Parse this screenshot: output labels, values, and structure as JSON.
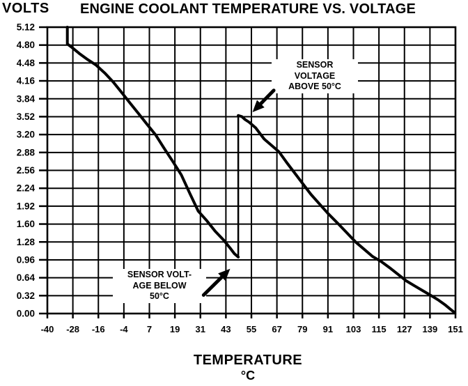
{
  "page_title": "ENGINE COOLANT TEMPERATURE VS. VOLTAGE",
  "chart_data": {
    "type": "line",
    "title": "ENGINE COOLANT TEMPERATURE VS. VOLTAGE",
    "ylabel": "VOLTS",
    "xlabel": "TEMPERATURE",
    "x_unit": "°C",
    "xlim": [
      -40,
      152
    ],
    "ylim": [
      0,
      5.12
    ],
    "grid": true,
    "legend": "none",
    "x_ticks": [
      "-40",
      "-28",
      "-16",
      "-4",
      "7",
      "19",
      "31",
      "43",
      "55",
      "67",
      "79",
      "91",
      "103",
      "115",
      "127",
      "139",
      "151"
    ],
    "y_ticks": [
      "5.12",
      "4.80",
      "4.48",
      "4.16",
      "3.84",
      "3.52",
      "3.20",
      "2.88",
      "2.56",
      "2.24",
      "1.92",
      "1.60",
      "1.28",
      "0.96",
      "0.64",
      "0.32",
      "0.00"
    ],
    "series": [
      {
        "name": "sensor-voltage-below-50C",
        "points": [
          [
            -30.6,
            5.12
          ],
          [
            -30.6,
            4.82
          ],
          [
            -28.5,
            4.76
          ],
          [
            -25,
            4.65
          ],
          [
            -21,
            4.54
          ],
          [
            -17,
            4.44
          ],
          [
            -13,
            4.3
          ],
          [
            -9,
            4.14
          ],
          [
            -5,
            3.95
          ],
          [
            -1,
            3.76
          ],
          [
            3,
            3.57
          ],
          [
            7,
            3.38
          ],
          [
            11,
            3.19
          ],
          [
            15,
            2.95
          ],
          [
            19,
            2.72
          ],
          [
            23,
            2.48
          ],
          [
            27,
            2.15
          ],
          [
            31,
            1.83
          ],
          [
            35,
            1.66
          ],
          [
            39,
            1.47
          ],
          [
            43,
            1.31
          ],
          [
            46,
            1.17
          ],
          [
            48,
            1.07
          ],
          [
            49.8,
            1.01
          ]
        ]
      },
      {
        "name": "range-switch-jump-at-50C",
        "points": [
          [
            49.8,
            1.01
          ],
          [
            49.8,
            3.54
          ]
        ]
      },
      {
        "name": "sensor-voltage-above-50C",
        "points": [
          [
            49.8,
            3.54
          ],
          [
            51.5,
            3.52
          ],
          [
            53,
            3.47
          ],
          [
            55,
            3.42
          ],
          [
            58,
            3.32
          ],
          [
            62,
            3.12
          ],
          [
            66,
            2.99
          ],
          [
            69,
            2.89
          ],
          [
            73,
            2.68
          ],
          [
            77,
            2.48
          ],
          [
            81,
            2.28
          ],
          [
            84,
            2.13
          ],
          [
            88,
            1.96
          ],
          [
            92,
            1.79
          ],
          [
            97,
            1.6
          ],
          [
            101,
            1.44
          ],
          [
            105,
            1.28
          ],
          [
            109,
            1.15
          ],
          [
            113,
            1.02
          ],
          [
            117,
            0.93
          ],
          [
            121,
            0.82
          ],
          [
            125,
            0.7
          ],
          [
            129,
            0.58
          ],
          [
            133,
            0.49
          ],
          [
            137,
            0.4
          ],
          [
            140.6,
            0.32
          ],
          [
            144,
            0.24
          ],
          [
            147,
            0.16
          ],
          [
            149.5,
            0.08
          ],
          [
            151.5,
            0.02
          ]
        ]
      }
    ],
    "annotations": [
      {
        "id": "above-50c",
        "lines": [
          "SENSOR",
          "VOLTAGE",
          "ABOVE 50°C"
        ],
        "arrow_tail_xy": [
          66.5,
          3.99
        ],
        "arrow_tip_xy": [
          56.5,
          3.6
        ]
      },
      {
        "id": "below-50c",
        "lines": [
          "SENSOR VOLT-",
          "AGE BELOW",
          "50°C"
        ],
        "arrow_tail_xy": [
          33.5,
          0.33
        ],
        "arrow_tip_xy": [
          46.0,
          0.8
        ]
      }
    ],
    "colors": {
      "ink": "#000000",
      "paper": "#ffffff"
    }
  }
}
